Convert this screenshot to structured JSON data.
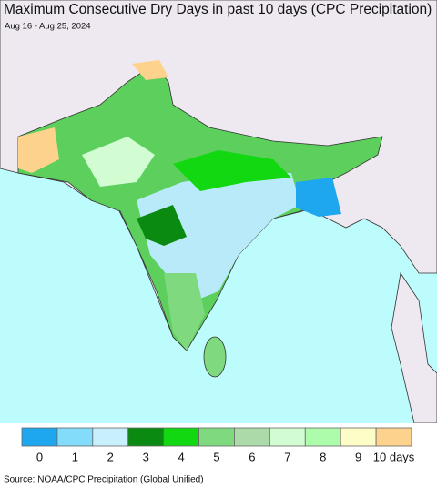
{
  "header": {
    "title": "Maximum Consecutive Dry Days in past 10 days (CPC Precipitation)",
    "subtitle": "Aug 16 - Aug 25, 2024"
  },
  "legend": {
    "items": [
      {
        "label": "0",
        "color": "#1ea7ef"
      },
      {
        "label": "1",
        "color": "#82dcfa"
      },
      {
        "label": "2",
        "color": "#c8f0fc"
      },
      {
        "label": "3",
        "color": "#0b8a12"
      },
      {
        "label": "4",
        "color": "#12d812"
      },
      {
        "label": "5",
        "color": "#7fd97f"
      },
      {
        "label": "6",
        "color": "#acdaa8"
      },
      {
        "label": "7",
        "color": "#d2fcd2"
      },
      {
        "label": "8",
        "color": "#acfcac"
      },
      {
        "label": "9",
        "color": "#fdfdc8"
      },
      {
        "label": "10 days",
        "color": "#fcd28c"
      }
    ]
  },
  "source": "Source: NOAA/CPC Precipitation (Global Unified)"
}
